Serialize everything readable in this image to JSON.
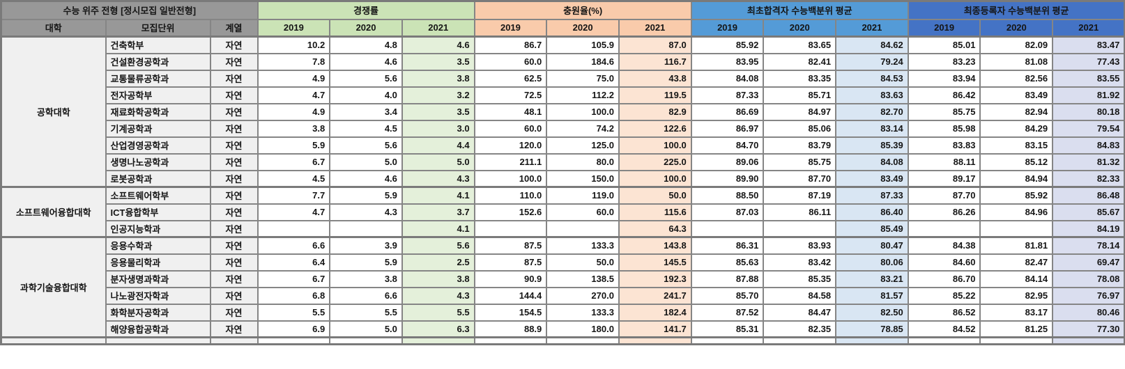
{
  "header": {
    "title": "수능 위주 전형 [정시모집 일반전형]",
    "col_univ": "대학",
    "col_dept": "모집단위",
    "col_track": "계열",
    "groups": [
      {
        "label": "경쟁률",
        "years": [
          "2019",
          "2020",
          "2021"
        ],
        "color": "#cbe3b6",
        "tint": "#e4f0da"
      },
      {
        "label": "충원율(%)",
        "years": [
          "2019",
          "2020",
          "2021"
        ],
        "color": "#f9cbab",
        "tint": "#fce4d3"
      },
      {
        "label": "최초합격자 수능백분위 평균",
        "years": [
          "2019",
          "2020",
          "2021"
        ],
        "color": "#549bd7",
        "tint": "#d9e6f3"
      },
      {
        "label": "최종등록자 수능백분위 평균",
        "years": [
          "2019",
          "2020",
          "2021"
        ],
        "color": "#4473c5",
        "tint": "#dadeef"
      }
    ]
  },
  "colleges": [
    {
      "name": "공학대학",
      "rows": [
        {
          "dept": "건축학부",
          "track": "자연",
          "values": [
            "10.2",
            "4.8",
            "4.6",
            "86.7",
            "105.9",
            "87.0",
            "85.92",
            "83.65",
            "84.62",
            "85.01",
            "82.09",
            "83.47"
          ]
        },
        {
          "dept": "건설환경공학과",
          "track": "자연",
          "values": [
            "7.8",
            "4.6",
            "3.5",
            "60.0",
            "184.6",
            "116.7",
            "83.95",
            "82.41",
            "79.24",
            "83.23",
            "81.08",
            "77.43"
          ]
        },
        {
          "dept": "교통물류공학과",
          "track": "자연",
          "values": [
            "4.9",
            "5.6",
            "3.8",
            "62.5",
            "75.0",
            "43.8",
            "84.08",
            "83.35",
            "84.53",
            "83.94",
            "82.56",
            "83.55"
          ]
        },
        {
          "dept": "전자공학부",
          "track": "자연",
          "values": [
            "4.7",
            "4.0",
            "3.2",
            "72.5",
            "112.2",
            "119.5",
            "87.33",
            "85.71",
            "83.63",
            "86.42",
            "83.49",
            "81.92"
          ]
        },
        {
          "dept": "재료화학공학과",
          "track": "자연",
          "values": [
            "4.9",
            "3.4",
            "3.5",
            "48.1",
            "100.0",
            "82.9",
            "86.69",
            "84.97",
            "82.70",
            "85.75",
            "82.94",
            "80.18"
          ]
        },
        {
          "dept": "기계공학과",
          "track": "자연",
          "values": [
            "3.8",
            "4.5",
            "3.0",
            "60.0",
            "74.2",
            "122.6",
            "86.97",
            "85.06",
            "83.14",
            "85.98",
            "84.29",
            "79.54"
          ]
        },
        {
          "dept": "산업경영공학과",
          "track": "자연",
          "values": [
            "5.9",
            "5.6",
            "4.4",
            "120.0",
            "125.0",
            "100.0",
            "84.70",
            "83.79",
            "85.39",
            "83.83",
            "83.15",
            "84.83"
          ]
        },
        {
          "dept": "생명나노공학과",
          "track": "자연",
          "values": [
            "6.7",
            "5.0",
            "5.0",
            "211.1",
            "80.0",
            "225.0",
            "89.06",
            "85.75",
            "84.08",
            "88.11",
            "85.12",
            "81.32"
          ]
        },
        {
          "dept": "로봇공학과",
          "track": "자연",
          "values": [
            "4.5",
            "4.6",
            "4.3",
            "100.0",
            "150.0",
            "100.0",
            "89.90",
            "87.70",
            "83.49",
            "89.17",
            "84.94",
            "82.33"
          ]
        }
      ]
    },
    {
      "name": "소프트웨어융합대학",
      "rows": [
        {
          "dept": "소프트웨어학부",
          "track": "자연",
          "values": [
            "7.7",
            "5.9",
            "4.1",
            "110.0",
            "119.0",
            "50.0",
            "88.50",
            "87.19",
            "87.33",
            "87.70",
            "85.92",
            "86.48"
          ]
        },
        {
          "dept": "ICT융합학부",
          "track": "자연",
          "values": [
            "4.7",
            "4.3",
            "3.7",
            "152.6",
            "60.0",
            "115.6",
            "87.03",
            "86.11",
            "86.40",
            "86.26",
            "84.96",
            "85.67"
          ]
        },
        {
          "dept": "인공지능학과",
          "track": "자연",
          "values": [
            "",
            "",
            "4.1",
            "",
            "",
            "64.3",
            "",
            "",
            "85.49",
            "",
            "",
            "84.19"
          ]
        }
      ]
    },
    {
      "name": "과학기술융합대학",
      "rows": [
        {
          "dept": "응용수학과",
          "track": "자연",
          "values": [
            "6.6",
            "3.9",
            "5.6",
            "87.5",
            "133.3",
            "143.8",
            "86.31",
            "83.93",
            "80.47",
            "84.38",
            "81.81",
            "78.14"
          ]
        },
        {
          "dept": "응용물리학과",
          "track": "자연",
          "values": [
            "6.4",
            "5.9",
            "2.5",
            "87.5",
            "50.0",
            "145.5",
            "85.63",
            "83.42",
            "80.06",
            "84.60",
            "82.47",
            "69.47"
          ]
        },
        {
          "dept": "분자생명과학과",
          "track": "자연",
          "values": [
            "6.7",
            "3.8",
            "3.8",
            "90.9",
            "138.5",
            "192.3",
            "87.88",
            "85.35",
            "83.21",
            "86.70",
            "84.14",
            "78.08"
          ]
        },
        {
          "dept": "나노광전자학과",
          "track": "자연",
          "values": [
            "6.8",
            "6.6",
            "4.3",
            "144.4",
            "270.0",
            "241.7",
            "85.70",
            "84.58",
            "81.57",
            "85.22",
            "82.95",
            "76.97"
          ]
        },
        {
          "dept": "화학분자공학과",
          "track": "자연",
          "values": [
            "5.5",
            "5.5",
            "5.5",
            "154.5",
            "133.3",
            "182.4",
            "87.52",
            "84.47",
            "82.50",
            "86.52",
            "83.17",
            "80.46"
          ]
        },
        {
          "dept": "해양융합공학과",
          "track": "자연",
          "values": [
            "6.9",
            "5.0",
            "6.3",
            "88.9",
            "180.0",
            "141.7",
            "85.31",
            "82.35",
            "78.85",
            "84.52",
            "81.25",
            "77.30"
          ]
        }
      ]
    }
  ]
}
